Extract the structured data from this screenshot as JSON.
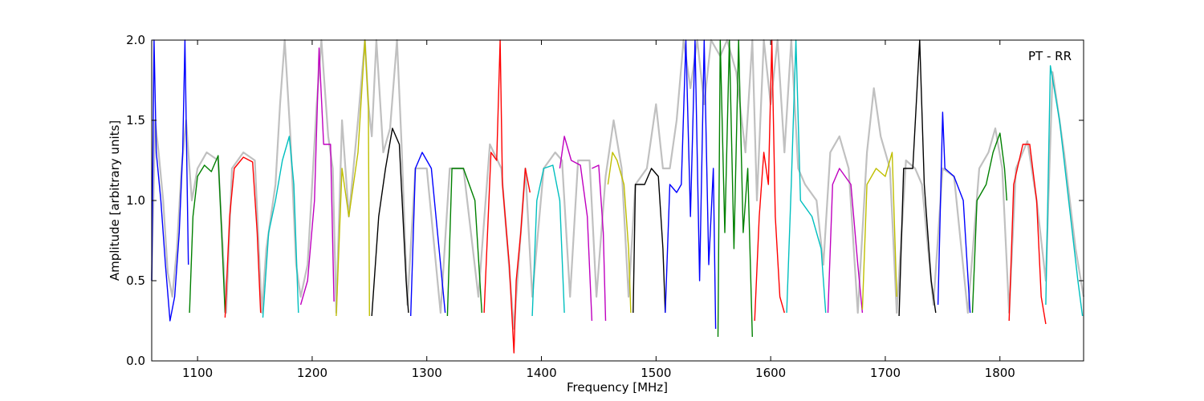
{
  "chart_data": {
    "type": "line",
    "title": "",
    "annotation": "PT - RR",
    "xlabel": "Frequency [MHz]",
    "ylabel": "Amplitude [arbitrary units]",
    "xlim": [
      1060,
      1873
    ],
    "ylim": [
      0.0,
      2.0
    ],
    "xticks": [
      1100,
      1200,
      1300,
      1400,
      1500,
      1600,
      1700,
      1800
    ],
    "yticks": [
      0.0,
      0.5,
      1.0,
      1.5,
      2.0
    ],
    "ytick_labels": [
      "0.0",
      "0.5",
      "1.0",
      "1.5",
      "2.0"
    ],
    "grid": false,
    "background_series": {
      "color": "#c0c0c0",
      "points": [
        [
          1060,
          0.5
        ],
        [
          1063,
          1.5
        ],
        [
          1066,
          1.3
        ],
        [
          1070,
          1.0
        ],
        [
          1074,
          0.55
        ],
        [
          1078,
          0.4
        ],
        [
          1082,
          0.7
        ],
        [
          1086,
          1.2
        ],
        [
          1090,
          1.5
        ],
        [
          1095,
          1.0
        ],
        [
          1100,
          1.2
        ],
        [
          1108,
          1.3
        ],
        [
          1118,
          1.25
        ],
        [
          1125,
          0.3
        ],
        [
          1130,
          1.2
        ],
        [
          1140,
          1.3
        ],
        [
          1150,
          1.25
        ],
        [
          1156,
          0.3
        ],
        [
          1160,
          0.7
        ],
        [
          1168,
          1.1
        ],
        [
          1172,
          1.6
        ],
        [
          1176,
          2.0
        ],
        [
          1181,
          1.4
        ],
        [
          1186,
          0.6
        ],
        [
          1190,
          0.4
        ],
        [
          1196,
          0.6
        ],
        [
          1204,
          1.6
        ],
        [
          1208,
          2.0
        ],
        [
          1214,
          1.4
        ],
        [
          1218,
          1.2
        ],
        [
          1221,
          0.3
        ],
        [
          1226,
          1.5
        ],
        [
          1232,
          0.9
        ],
        [
          1240,
          1.5
        ],
        [
          1246,
          2.0
        ],
        [
          1249,
          1.6
        ],
        [
          1252,
          1.4
        ],
        [
          1256,
          2.0
        ],
        [
          1262,
          1.3
        ],
        [
          1268,
          1.45
        ],
        [
          1274,
          2.0
        ],
        [
          1278,
          1.35
        ],
        [
          1283,
          0.35
        ],
        [
          1290,
          1.2
        ],
        [
          1300,
          1.2
        ],
        [
          1312,
          0.3
        ],
        [
          1320,
          1.2
        ],
        [
          1332,
          1.2
        ],
        [
          1345,
          0.4
        ],
        [
          1355,
          1.35
        ],
        [
          1365,
          1.2
        ],
        [
          1376,
          0.2
        ],
        [
          1386,
          1.2
        ],
        [
          1392,
          0.4
        ],
        [
          1402,
          1.2
        ],
        [
          1412,
          1.3
        ],
        [
          1418,
          1.25
        ],
        [
          1425,
          0.4
        ],
        [
          1432,
          1.25
        ],
        [
          1442,
          1.25
        ],
        [
          1448,
          0.4
        ],
        [
          1456,
          1.15
        ],
        [
          1463,
          1.5
        ],
        [
          1470,
          1.2
        ],
        [
          1476,
          0.4
        ],
        [
          1482,
          1.1
        ],
        [
          1492,
          1.2
        ],
        [
          1500,
          1.6
        ],
        [
          1506,
          1.2
        ],
        [
          1512,
          1.2
        ],
        [
          1518,
          1.5
        ],
        [
          1524,
          2.0
        ],
        [
          1530,
          1.7
        ],
        [
          1536,
          2.0
        ],
        [
          1542,
          1.6
        ],
        [
          1548,
          2.0
        ],
        [
          1556,
          1.9
        ],
        [
          1562,
          2.0
        ],
        [
          1570,
          1.8
        ],
        [
          1578,
          1.3
        ],
        [
          1584,
          2.0
        ],
        [
          1588,
          1.0
        ],
        [
          1594,
          2.0
        ],
        [
          1600,
          1.6
        ],
        [
          1606,
          2.0
        ],
        [
          1612,
          1.3
        ],
        [
          1618,
          2.0
        ],
        [
          1624,
          1.2
        ],
        [
          1630,
          1.1
        ],
        [
          1640,
          1.0
        ],
        [
          1646,
          0.6
        ],
        [
          1652,
          1.3
        ],
        [
          1660,
          1.4
        ],
        [
          1668,
          1.2
        ],
        [
          1676,
          0.3
        ],
        [
          1684,
          1.3
        ],
        [
          1690,
          1.7
        ],
        [
          1696,
          1.4
        ],
        [
          1704,
          1.2
        ],
        [
          1710,
          0.3
        ],
        [
          1718,
          1.25
        ],
        [
          1726,
          1.2
        ],
        [
          1732,
          1.1
        ],
        [
          1742,
          0.35
        ],
        [
          1750,
          1.2
        ],
        [
          1760,
          1.15
        ],
        [
          1772,
          0.3
        ],
        [
          1782,
          1.2
        ],
        [
          1790,
          1.3
        ],
        [
          1796,
          1.45
        ],
        [
          1802,
          1.2
        ],
        [
          1808,
          0.3
        ],
        [
          1814,
          1.2
        ],
        [
          1824,
          1.37
        ],
        [
          1832,
          1.0
        ],
        [
          1840,
          0.5
        ],
        [
          1846,
          1.8
        ],
        [
          1856,
          1.3
        ],
        [
          1866,
          0.7
        ],
        [
          1873,
          0.4
        ]
      ]
    },
    "series": [
      {
        "color": "#0000ff",
        "points": [
          [
            1060,
            0.5
          ],
          [
            1062,
            2.0
          ],
          [
            1064,
            1.3
          ],
          [
            1068,
            1.0
          ],
          [
            1072,
            0.6
          ],
          [
            1076,
            0.25
          ],
          [
            1080,
            0.4
          ],
          [
            1084,
            0.8
          ],
          [
            1087,
            1.3
          ],
          [
            1089,
            2.0
          ],
          [
            1092,
            0.6
          ]
        ]
      },
      {
        "color": "#008000",
        "points": [
          [
            1093,
            0.3
          ],
          [
            1096,
            0.9
          ],
          [
            1100,
            1.15
          ],
          [
            1106,
            1.22
          ],
          [
            1112,
            1.18
          ],
          [
            1118,
            1.28
          ],
          [
            1121,
            0.8
          ],
          [
            1124,
            0.3
          ]
        ]
      },
      {
        "color": "#ff0000",
        "points": [
          [
            1124,
            0.27
          ],
          [
            1128,
            0.9
          ],
          [
            1132,
            1.2
          ],
          [
            1140,
            1.27
          ],
          [
            1148,
            1.24
          ],
          [
            1152,
            0.8
          ],
          [
            1155,
            0.3
          ]
        ]
      },
      {
        "color": "#00bfbf",
        "points": [
          [
            1157,
            0.27
          ],
          [
            1162,
            0.8
          ],
          [
            1168,
            1.0
          ],
          [
            1174,
            1.25
          ],
          [
            1180,
            1.4
          ],
          [
            1184,
            1.1
          ],
          [
            1188,
            0.3
          ]
        ]
      },
      {
        "color": "#bf00bf",
        "points": [
          [
            1190,
            0.35
          ],
          [
            1196,
            0.5
          ],
          [
            1202,
            1.0
          ],
          [
            1206,
            1.95
          ],
          [
            1210,
            1.35
          ],
          [
            1216,
            1.35
          ],
          [
            1219,
            0.37
          ]
        ]
      },
      {
        "color": "#bfbf00",
        "points": [
          [
            1221,
            0.28
          ],
          [
            1226,
            1.2
          ],
          [
            1232,
            0.9
          ],
          [
            1240,
            1.3
          ],
          [
            1246,
            2.0
          ],
          [
            1249,
            1.6
          ],
          [
            1250,
            0.28
          ]
        ]
      },
      {
        "color": "#000000",
        "points": [
          [
            1252,
            0.28
          ],
          [
            1258,
            0.9
          ],
          [
            1264,
            1.2
          ],
          [
            1270,
            1.45
          ],
          [
            1276,
            1.35
          ],
          [
            1282,
            0.5
          ],
          [
            1284,
            0.3
          ]
        ]
      },
      {
        "color": "#0000ff",
        "points": [
          [
            1286,
            0.28
          ],
          [
            1290,
            1.2
          ],
          [
            1296,
            1.3
          ],
          [
            1304,
            1.2
          ],
          [
            1312,
            0.6
          ],
          [
            1316,
            0.3
          ]
        ]
      },
      {
        "color": "#008000",
        "points": [
          [
            1318,
            0.28
          ],
          [
            1322,
            1.2
          ],
          [
            1332,
            1.2
          ],
          [
            1342,
            1.0
          ],
          [
            1348,
            0.3
          ]
        ]
      },
      {
        "color": "#ff0000",
        "points": [
          [
            1350,
            0.3
          ],
          [
            1356,
            1.3
          ],
          [
            1361,
            1.25
          ],
          [
            1364,
            2.0
          ],
          [
            1366,
            1.1
          ],
          [
            1372,
            0.6
          ],
          [
            1376,
            0.05
          ],
          [
            1378,
            0.5
          ],
          [
            1382,
            0.8
          ],
          [
            1386,
            1.2
          ],
          [
            1390,
            1.05
          ]
        ]
      },
      {
        "color": "#00bfbf",
        "points": [
          [
            1392,
            0.28
          ],
          [
            1396,
            1.0
          ],
          [
            1402,
            1.2
          ],
          [
            1410,
            1.22
          ],
          [
            1416,
            1.0
          ],
          [
            1420,
            0.3
          ]
        ]
      },
      {
        "color": "#bf00bf",
        "points": [
          [
            1416,
            1.2
          ],
          [
            1420,
            1.4
          ],
          [
            1426,
            1.25
          ],
          [
            1434,
            1.22
          ],
          [
            1440,
            0.9
          ],
          [
            1444,
            0.25
          ]
        ]
      },
      {
        "color": "#bf00bf",
        "points": [
          [
            1444,
            1.2
          ],
          [
            1450,
            1.22
          ],
          [
            1454,
            0.8
          ],
          [
            1456,
            0.25
          ]
        ]
      },
      {
        "color": "#bfbf00",
        "points": [
          [
            1458,
            1.1
          ],
          [
            1462,
            1.3
          ],
          [
            1466,
            1.25
          ],
          [
            1472,
            1.1
          ],
          [
            1476,
            0.7
          ],
          [
            1478,
            0.3
          ]
        ]
      },
      {
        "color": "#000000",
        "points": [
          [
            1480,
            0.3
          ],
          [
            1482,
            1.1
          ],
          [
            1490,
            1.1
          ],
          [
            1496,
            1.2
          ],
          [
            1502,
            1.15
          ],
          [
            1506,
            0.7
          ],
          [
            1508,
            0.3
          ]
        ]
      },
      {
        "color": "#0000ff",
        "points": [
          [
            1508,
            0.3
          ],
          [
            1512,
            1.1
          ],
          [
            1518,
            1.05
          ],
          [
            1522,
            1.1
          ],
          [
            1526,
            2.0
          ],
          [
            1530,
            0.9
          ],
          [
            1534,
            2.0
          ],
          [
            1538,
            0.5
          ],
          [
            1542,
            2.0
          ],
          [
            1546,
            0.6
          ],
          [
            1550,
            1.2
          ],
          [
            1552,
            0.2
          ]
        ]
      },
      {
        "color": "#008000",
        "points": [
          [
            1554,
            0.15
          ],
          [
            1556,
            2.0
          ],
          [
            1560,
            0.8
          ],
          [
            1564,
            2.0
          ],
          [
            1568,
            0.7
          ],
          [
            1572,
            2.0
          ],
          [
            1576,
            0.8
          ],
          [
            1580,
            1.2
          ],
          [
            1584,
            0.15
          ]
        ]
      },
      {
        "color": "#ff0000",
        "points": [
          [
            1586,
            0.25
          ],
          [
            1590,
            0.9
          ],
          [
            1594,
            1.3
          ],
          [
            1598,
            1.1
          ],
          [
            1601,
            2.0
          ],
          [
            1604,
            0.9
          ],
          [
            1608,
            0.4
          ],
          [
            1612,
            0.3
          ]
        ]
      },
      {
        "color": "#00bfbf",
        "points": [
          [
            1614,
            0.3
          ],
          [
            1618,
            1.1
          ],
          [
            1622,
            2.0
          ],
          [
            1626,
            1.0
          ],
          [
            1636,
            0.9
          ],
          [
            1644,
            0.7
          ],
          [
            1648,
            0.3
          ]
        ]
      },
      {
        "color": "#bf00bf",
        "points": [
          [
            1650,
            0.3
          ],
          [
            1654,
            1.1
          ],
          [
            1660,
            1.2
          ],
          [
            1670,
            1.1
          ],
          [
            1676,
            0.6
          ],
          [
            1680,
            0.3
          ]
        ]
      },
      {
        "color": "#bfbf00",
        "points": [
          [
            1680,
            0.32
          ],
          [
            1684,
            1.1
          ],
          [
            1692,
            1.2
          ],
          [
            1700,
            1.15
          ],
          [
            1706,
            1.3
          ],
          [
            1710,
            0.4
          ]
        ]
      },
      {
        "color": "#000000",
        "points": [
          [
            1712,
            0.28
          ],
          [
            1716,
            1.2
          ],
          [
            1724,
            1.2
          ],
          [
            1730,
            2.0
          ],
          [
            1734,
            1.1
          ],
          [
            1740,
            0.5
          ],
          [
            1744,
            0.3
          ]
        ]
      },
      {
        "color": "#0000ff",
        "points": [
          [
            1746,
            0.35
          ],
          [
            1750,
            1.55
          ],
          [
            1752,
            1.2
          ],
          [
            1760,
            1.15
          ],
          [
            1768,
            1.0
          ],
          [
            1774,
            0.3
          ]
        ]
      },
      {
        "color": "#008000",
        "points": [
          [
            1776,
            0.3
          ],
          [
            1780,
            1.0
          ],
          [
            1788,
            1.1
          ],
          [
            1794,
            1.3
          ],
          [
            1800,
            1.42
          ],
          [
            1804,
            1.2
          ],
          [
            1806,
            1.0
          ]
        ]
      },
      {
        "color": "#ff0000",
        "points": [
          [
            1808,
            0.25
          ],
          [
            1812,
            1.1
          ],
          [
            1820,
            1.35
          ],
          [
            1826,
            1.35
          ],
          [
            1832,
            1.0
          ],
          [
            1836,
            0.4
          ],
          [
            1840,
            0.23
          ]
        ]
      },
      {
        "color": "#00bfbf",
        "points": [
          [
            1840,
            0.35
          ],
          [
            1844,
            1.84
          ],
          [
            1852,
            1.5
          ],
          [
            1860,
            1.0
          ],
          [
            1868,
            0.5
          ],
          [
            1872,
            0.28
          ]
        ]
      }
    ]
  }
}
